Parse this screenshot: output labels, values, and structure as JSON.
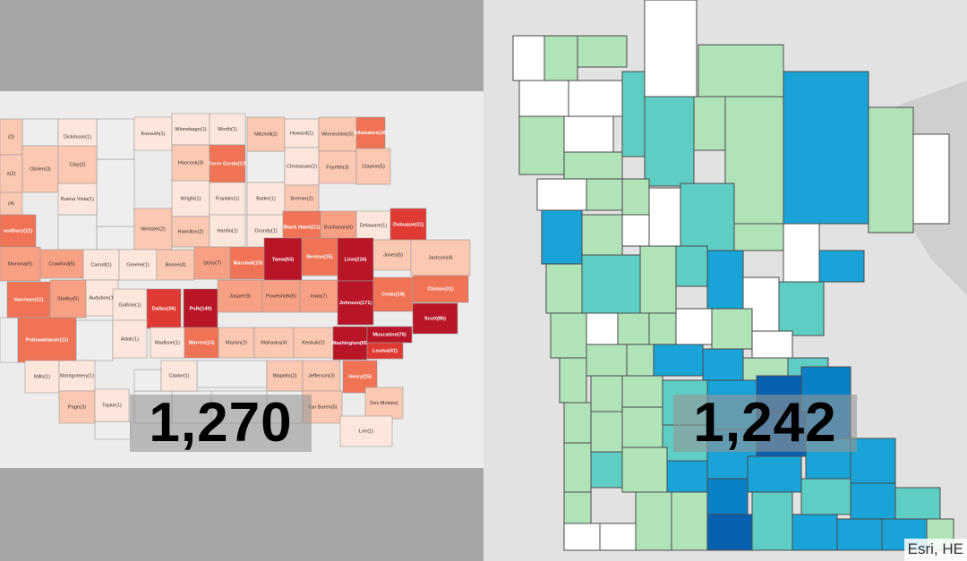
{
  "iowa": {
    "total": "1,270",
    "colors": {
      "c0": "#eeeeee",
      "c1": "#fde6dc",
      "c2": "#fbc8b1",
      "c3": "#f8a083",
      "c4": "#f07356",
      "c5": "#e03a34",
      "c6": "#b81526"
    },
    "counties": [
      {
        "label": "(2)",
        "shade": "c2"
      },
      {
        "label": "Dickinson(1)",
        "shade": "c1"
      },
      {
        "label": "Kossuth(1)",
        "shade": "c1"
      },
      {
        "label": "Winnebago(1)",
        "shade": "c1"
      },
      {
        "label": "Worth(1)",
        "shade": "c1"
      },
      {
        "label": "Mitchell(2)",
        "shade": "c2"
      },
      {
        "label": "Howard(1)",
        "shade": "c1"
      },
      {
        "label": "Winneshiek(5)",
        "shade": "c2"
      },
      {
        "label": "Allamakee(16)",
        "shade": "c4"
      },
      {
        "label": "a(2)",
        "shade": "c2"
      },
      {
        "label": "Obrien(3)",
        "shade": "c2"
      },
      {
        "label": "Clay(2)",
        "shade": "c2"
      },
      {
        "label": "Hancock(3)",
        "shade": "c2"
      },
      {
        "label": "Cerro Gordo(13)",
        "shade": "c4"
      },
      {
        "label": "Chickasaw(2)",
        "shade": "c1"
      },
      {
        "label": "Fayette(3)",
        "shade": "c2"
      },
      {
        "label": "Clayton(5)",
        "shade": "c2"
      },
      {
        "label": "(4)",
        "shade": "c2"
      },
      {
        "label": "Buena Vista(1)",
        "shade": "c1"
      },
      {
        "label": "Wright(1)",
        "shade": "c1"
      },
      {
        "label": "Franklin(1)",
        "shade": "c1"
      },
      {
        "label": "Butler(1)",
        "shade": "c1"
      },
      {
        "label": "Bremer(2)",
        "shade": "c2"
      },
      {
        "label": "Webster(2)",
        "shade": "c2"
      },
      {
        "label": "Hamilton(2)",
        "shade": "c2"
      },
      {
        "label": "Hardin(1)",
        "shade": "c1"
      },
      {
        "label": "Grundy(1)",
        "shade": "c1"
      },
      {
        "label": "Black Hawk(21)",
        "shade": "c4"
      },
      {
        "label": "Buchanan(6)",
        "shade": "c3"
      },
      {
        "label": "Delaware(1)",
        "shade": "c1"
      },
      {
        "label": "Dubuque(31)",
        "shade": "c5"
      },
      {
        "label": "oodbury(12)",
        "shade": "c4"
      },
      {
        "label": "Monona(6)",
        "shade": "c3"
      },
      {
        "label": "Crawford(5)",
        "shade": "c3"
      },
      {
        "label": "Carroll(1)",
        "shade": "c1"
      },
      {
        "label": "Greene(1)",
        "shade": "c1"
      },
      {
        "label": "Boone(4)",
        "shade": "c2"
      },
      {
        "label": "Story(7)",
        "shade": "c3"
      },
      {
        "label": "Marshall(19)",
        "shade": "c4"
      },
      {
        "label": "Tama(63)",
        "shade": "c6"
      },
      {
        "label": "Benton(15)",
        "shade": "c4"
      },
      {
        "label": "Linn(216)",
        "shade": "c6"
      },
      {
        "label": "Jones(6)",
        "shade": "c2"
      },
      {
        "label": "Jackson(4)",
        "shade": "c2"
      },
      {
        "label": "Harrison(11)",
        "shade": "c4"
      },
      {
        "label": "Shelby(5)",
        "shade": "c3"
      },
      {
        "label": "Audubon(1)",
        "shade": "c1"
      },
      {
        "label": "Guthrie(1)",
        "shade": "c1"
      },
      {
        "label": "Dallas(36)",
        "shade": "c5"
      },
      {
        "label": "Polk(140)",
        "shade": "c6"
      },
      {
        "label": "Jasper(9)",
        "shade": "c3"
      },
      {
        "label": "Poweshiek(6)",
        "shade": "c3"
      },
      {
        "label": "Iowa(7)",
        "shade": "c3"
      },
      {
        "label": "Johnson(171)",
        "shade": "c6"
      },
      {
        "label": "Cedar(19)",
        "shade": "c4"
      },
      {
        "label": "Clinton(31)",
        "shade": "c4"
      },
      {
        "label": "Scott(86)",
        "shade": "c6"
      },
      {
        "label": "Pottawattamie(11)",
        "shade": "c4"
      },
      {
        "label": "Adair(1)",
        "shade": "c1"
      },
      {
        "label": "Madison(1)",
        "shade": "c1"
      },
      {
        "label": "Warren(13)",
        "shade": "c4"
      },
      {
        "label": "Marion(2)",
        "shade": "c2"
      },
      {
        "label": "Mahaska(4)",
        "shade": "c2"
      },
      {
        "label": "Keokuk(2)",
        "shade": "c2"
      },
      {
        "label": "Washington(65)",
        "shade": "c6"
      },
      {
        "label": "Muscatine(70)",
        "shade": "c6"
      },
      {
        "label": "Louisa(41)",
        "shade": "c5"
      },
      {
        "label": "Mills(1)",
        "shade": "c1"
      },
      {
        "label": "Montgomery(1)",
        "shade": "c1"
      },
      {
        "label": "Clarke(1)",
        "shade": "c1"
      },
      {
        "label": "Wapello(2)",
        "shade": "c2"
      },
      {
        "label": "Jefferson(3)",
        "shade": "c2"
      },
      {
        "label": "Henry(15)",
        "shade": "c4"
      },
      {
        "label": "Page(3)",
        "shade": "c2"
      },
      {
        "label": "Taylor(1)",
        "shade": "c1"
      },
      {
        "label": "Van Buren(5)",
        "shade": "c2"
      },
      {
        "label": "Des Moines(",
        "shade": "c2"
      },
      {
        "label": "Lee(1)",
        "shade": "c1"
      }
    ]
  },
  "minnesota": {
    "total": "1,242",
    "attribution": "Esri, HE",
    "colors": {
      "none": "#ffffff",
      "light": "#b1e3b9",
      "teal": "#5ecdc4",
      "blue": "#1aa3d6",
      "mid": "#0a81c6",
      "dark": "#0560b0"
    }
  }
}
